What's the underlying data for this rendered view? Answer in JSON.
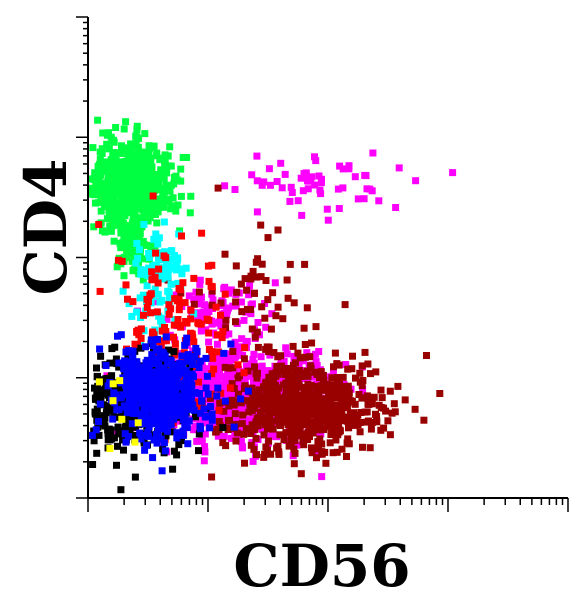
{
  "chart_data": {
    "type": "scatter",
    "title": "",
    "xlabel": "CD56",
    "ylabel": "CD4",
    "xscale": "log",
    "yscale": "log",
    "xlim": [
      1,
      10000
    ],
    "ylim": [
      1,
      10000
    ],
    "decades": 4,
    "grid": false,
    "legend": "none",
    "tick_labels": false,
    "series": [
      {
        "color": "#00ff40",
        "clusters": [
          {
            "x": 2.25,
            "y": 400,
            "sx": 0.17,
            "sy": 0.17,
            "n": 700
          },
          {
            "x": 2.4,
            "y": 130,
            "sx": 0.07,
            "sy": 0.12,
            "n": 90
          }
        ]
      },
      {
        "color": "#ff00ff",
        "clusters": [
          {
            "x": 20,
            "y": 7,
            "sx": 0.33,
            "sy": 0.2,
            "n": 650
          },
          {
            "x": 12,
            "y": 35,
            "sx": 0.25,
            "sy": 0.13,
            "n": 100
          },
          {
            "x": 70,
            "y": 420,
            "sx": 0.35,
            "sy": 0.12,
            "n": 60
          }
        ]
      },
      {
        "color": "#990000",
        "clusters": [
          {
            "x": 60,
            "y": 6,
            "sx": 0.33,
            "sy": 0.2,
            "n": 600
          },
          {
            "x": 25,
            "y": 45,
            "sx": 0.3,
            "sy": 0.28,
            "n": 70
          }
        ]
      },
      {
        "color": "#00ffff",
        "clusters": [
          {
            "x": 4,
            "y": 60,
            "sx": 0.13,
            "sy": 0.23,
            "n": 110
          }
        ]
      },
      {
        "color": "#ff0000",
        "clusters": [
          {
            "x": 5,
            "y": 25,
            "sx": 0.25,
            "sy": 0.33,
            "n": 150
          }
        ]
      },
      {
        "color": "#000000",
        "clusters": [
          {
            "x": 2.2,
            "y": 6.5,
            "sx": 0.25,
            "sy": 0.22,
            "n": 420
          }
        ]
      },
      {
        "color": "#0000ff",
        "clusters": [
          {
            "x": 4,
            "y": 7.5,
            "sx": 0.2,
            "sy": 0.2,
            "n": 500
          }
        ]
      },
      {
        "color": "#ffff00",
        "clusters": [
          {
            "x": 1.5,
            "y": 5,
            "sx": 0.15,
            "sy": 0.2,
            "n": 8
          }
        ]
      }
    ]
  }
}
